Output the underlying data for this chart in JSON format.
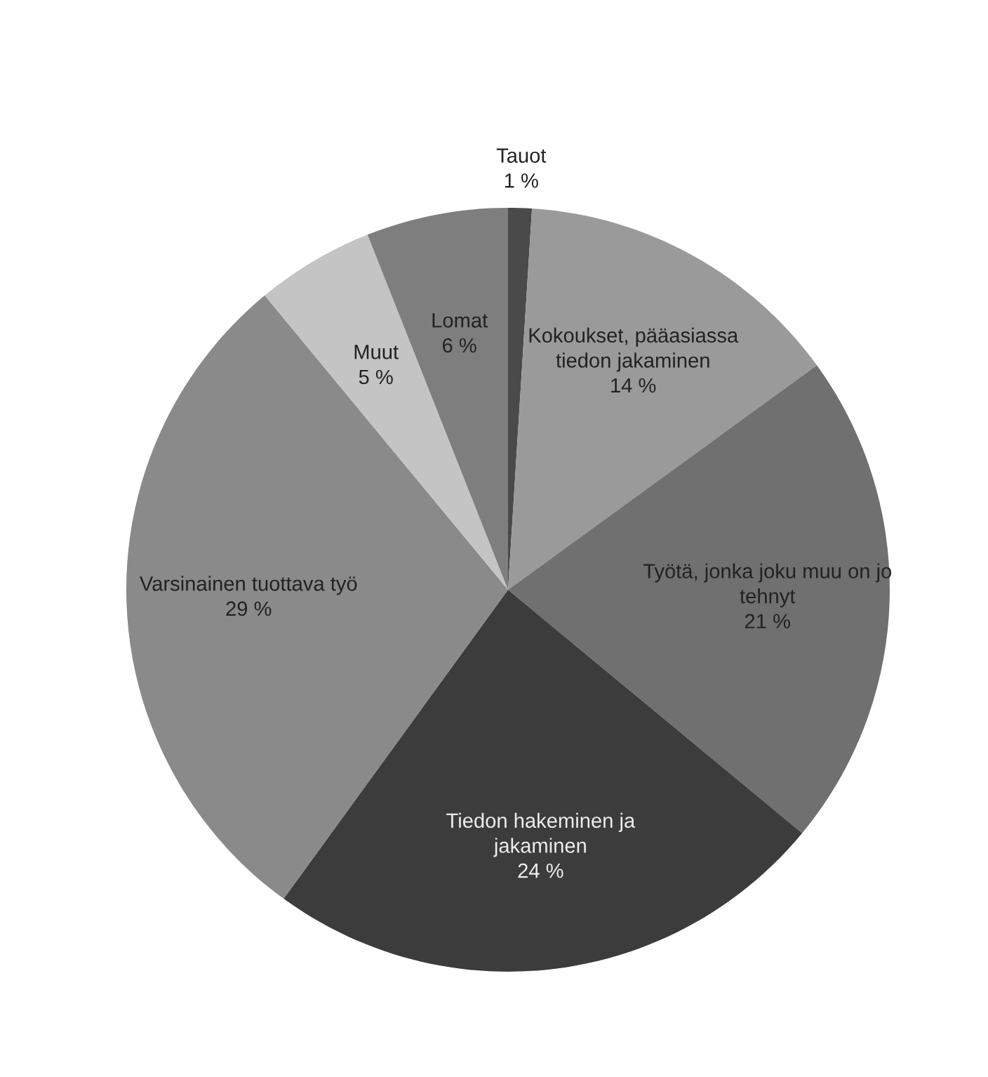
{
  "chart_data": {
    "type": "pie",
    "categories": [
      "Tauot",
      "Kokoukset, pääasiassa\ntiedon jakaminen",
      "Työtä, jonka joku muu on jo\ntehnyt",
      "Tiedon hakeminen ja\njakaminen",
      "Varsinainen tuottava työ",
      "Muut",
      "Lomat"
    ],
    "values": [
      1,
      14,
      21,
      24,
      29,
      5,
      6
    ],
    "value_labels": [
      "1 %",
      "14 %",
      "21 %",
      "24 %",
      "29 %",
      "5 %",
      "6 %"
    ],
    "colors": [
      "#4a4a4a",
      "#9a9a9a",
      "#707070",
      "#3c3c3c",
      "#8a8a8a",
      "#c4c4c4",
      "#7e7e7e"
    ]
  }
}
